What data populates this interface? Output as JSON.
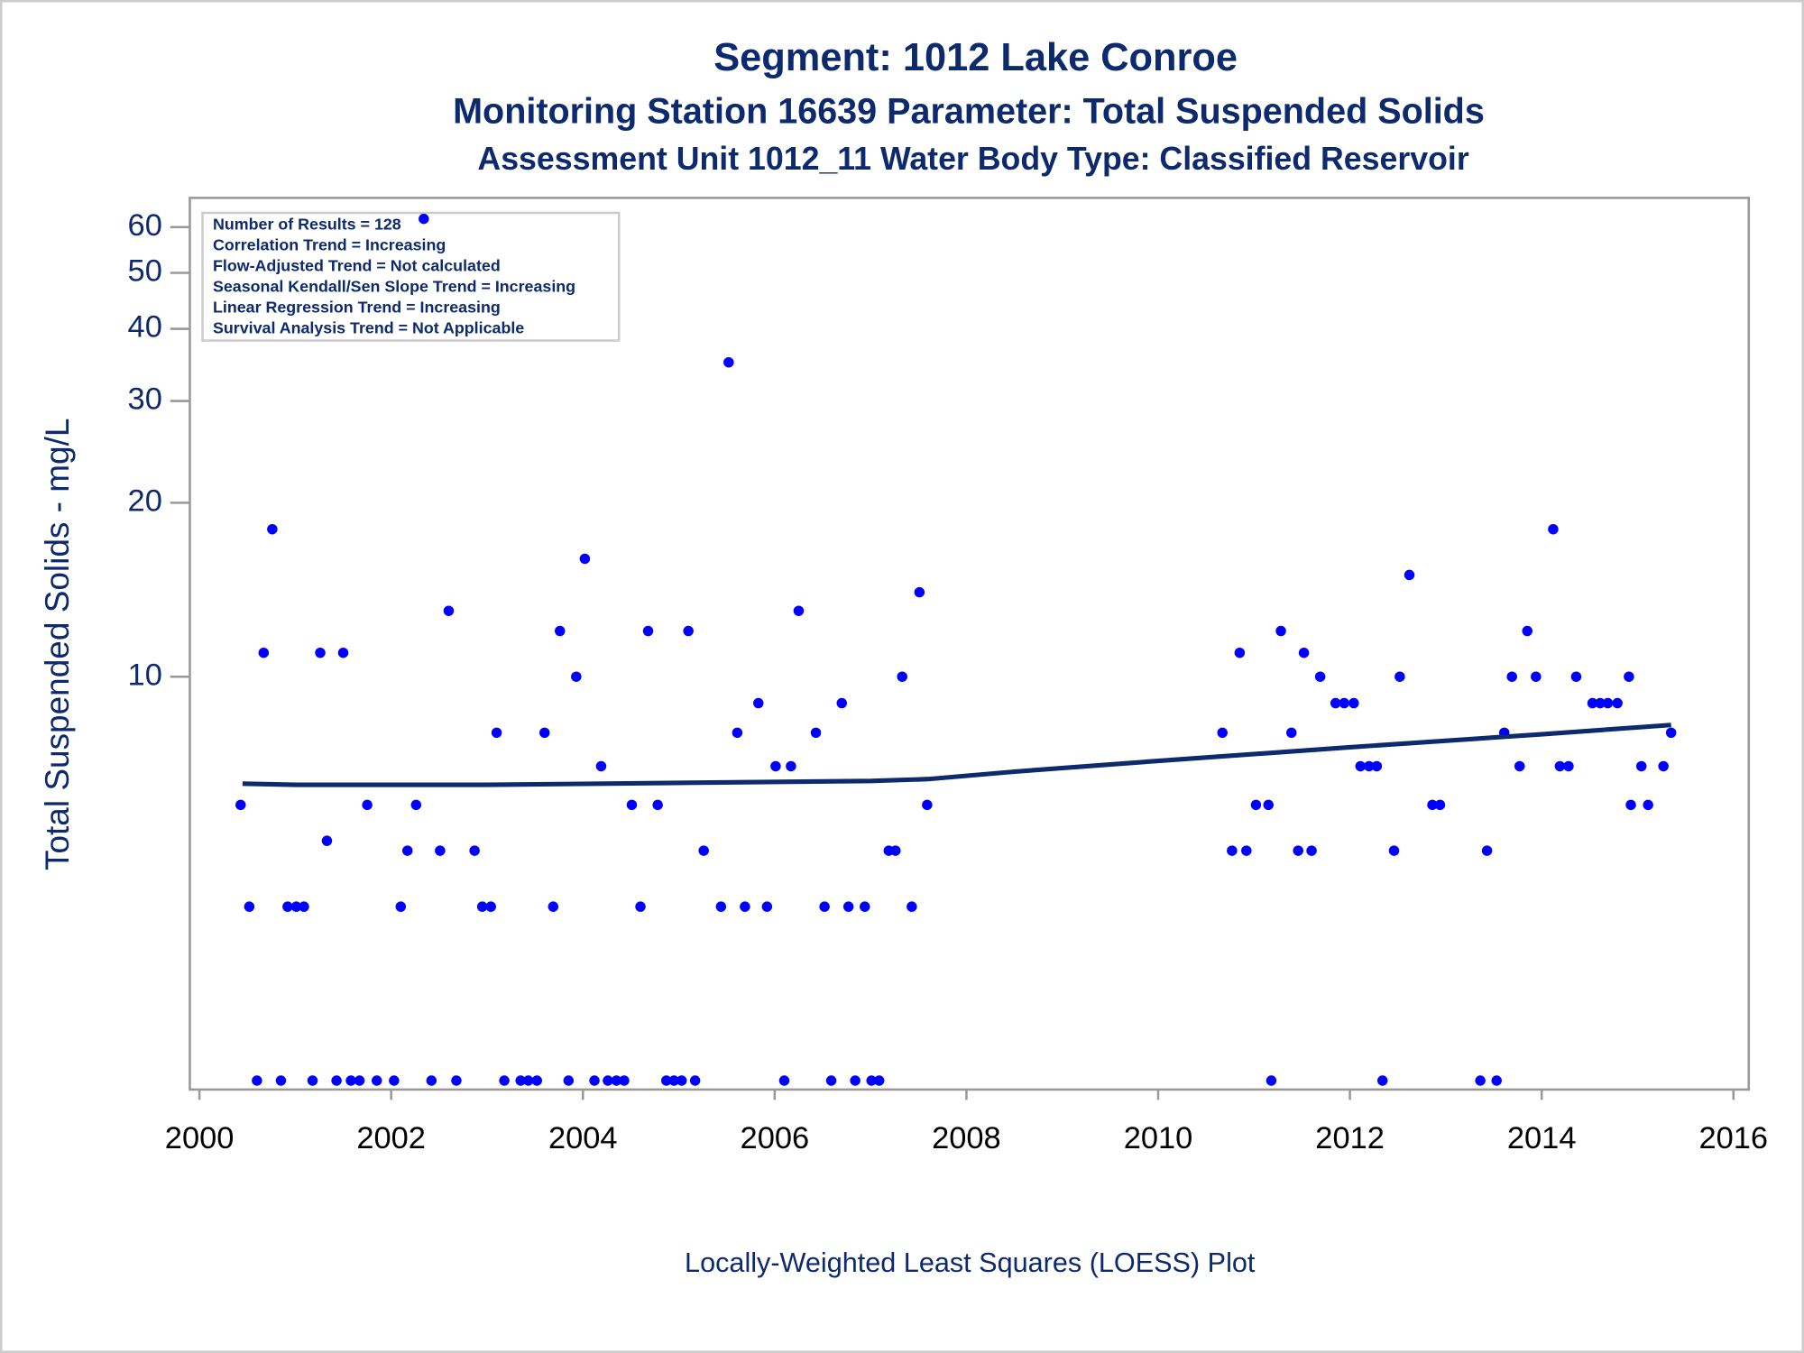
{
  "chart_data": {
    "type": "scatter",
    "title": "Segment: 1012  Lake Conroe",
    "subtitles": [
      "Monitoring Station 16639 Parameter: Total Suspended Solids",
      "Assessment Unit 1012_11   Water Body Type: Classified Reservoir"
    ],
    "y_label": "Total Suspended Solids - mg/L",
    "caption": "Locally-Weighted Least Squares (LOESS) Plot",
    "annotations": [
      "Number of Results = 128",
      "Correlation Trend = Increasing",
      "Flow-Adjusted Trend = Not calculated",
      "Seasonal Kendall/Sen Slope Trend = Increasing",
      "Linear Regression Trend = Increasing",
      "Survival Analysis Trend = Not Applicable"
    ],
    "y_log": true,
    "color": "#0000ff",
    "xlim": [
      1999.9,
      2016.16
    ],
    "xticks": [
      2000,
      2002,
      2004,
      2006,
      2008,
      2010,
      2012,
      2014,
      2016
    ],
    "ylim": [
      1.93,
      67.4
    ],
    "yticks": [
      10,
      20,
      30,
      40,
      50,
      60
    ],
    "x": [
      2000.43,
      2000.52,
      2000.6,
      2000.67,
      2000.76,
      2000.85,
      2000.92,
      2001.01,
      2001.09,
      2001.18,
      2001.26,
      2001.33,
      2001.43,
      2001.5,
      2001.58,
      2001.67,
      2001.75,
      2001.85,
      2002.03,
      2002.1,
      2002.17,
      2002.26,
      2002.34,
      2002.42,
      2002.51,
      2002.6,
      2002.68,
      2002.87,
      2002.95,
      2003.04,
      2003.1,
      2003.18,
      2003.35,
      2003.43,
      2003.52,
      2003.6,
      2003.69,
      2003.76,
      2003.85,
      2003.93,
      2004.02,
      2004.12,
      2004.19,
      2004.26,
      2004.35,
      2004.43,
      2004.51,
      2004.6,
      2004.68,
      2004.78,
      2004.87,
      2004.95,
      2005.03,
      2005.1,
      2005.17,
      2005.26,
      2005.44,
      2005.52,
      2005.61,
      2005.69,
      2005.83,
      2005.92,
      2006.01,
      2006.1,
      2006.17,
      2006.25,
      2006.43,
      2006.52,
      2006.59,
      2006.7,
      2006.77,
      2006.84,
      2006.94,
      2007.01,
      2007.09,
      2007.19,
      2007.26,
      2007.33,
      2007.43,
      2007.51,
      2007.59,
      2010.67,
      2010.77,
      2010.85,
      2010.92,
      2011.02,
      2011.15,
      2011.18,
      2011.28,
      2011.39,
      2011.46,
      2011.52,
      2011.6,
      2011.69,
      2011.85,
      2011.94,
      2012.04,
      2012.11,
      2012.2,
      2012.28,
      2012.34,
      2012.46,
      2012.52,
      2012.62,
      2012.86,
      2012.94,
      2013.36,
      2013.43,
      2013.53,
      2013.61,
      2013.69,
      2013.77,
      2013.85,
      2013.94,
      2014.12,
      2014.19,
      2014.28,
      2014.36,
      2014.53,
      2014.61,
      2014.69,
      2014.79,
      2014.91,
      2014.93,
      2015.04,
      2015.11,
      2015.27,
      2015.35
    ],
    "values": [
      6,
      4,
      2,
      11,
      18,
      2,
      4,
      4,
      4,
      2,
      11,
      5.2,
      2,
      11,
      2,
      2,
      6,
      2,
      2,
      4,
      5,
      6,
      62,
      2,
      5,
      13,
      2,
      5,
      4,
      4,
      8,
      2,
      2,
      2,
      2,
      8,
      4,
      12,
      2,
      10,
      16,
      2,
      7,
      2,
      2,
      2,
      6,
      4,
      12,
      6,
      2,
      2,
      2,
      12,
      2,
      5,
      4,
      35,
      8,
      4,
      9,
      4,
      7,
      2,
      7,
      13,
      8,
      4,
      2,
      9,
      4,
      2,
      4,
      2,
      2,
      5,
      5,
      10,
      4,
      14,
      6,
      8,
      5,
      11,
      5,
      6,
      6,
      2,
      12,
      8,
      5,
      11,
      5,
      10,
      9,
      9,
      9,
      7,
      7,
      7,
      2,
      5,
      10,
      15,
      6,
      6,
      2,
      5,
      2,
      8,
      10,
      7,
      12,
      10,
      18,
      7,
      7,
      10,
      9,
      9,
      9,
      9,
      10,
      6,
      7,
      6,
      7,
      8
    ],
    "loess": {
      "color": "#0d2a6e",
      "x": [
        2000.45,
        2001,
        2003,
        2005,
        2007,
        2007.6,
        2008.5,
        2010,
        2012,
        2014,
        2015.35
      ],
      "values": [
        6.53,
        6.5,
        6.5,
        6.55,
        6.6,
        6.65,
        6.85,
        7.15,
        7.55,
        7.95,
        8.25
      ]
    }
  }
}
